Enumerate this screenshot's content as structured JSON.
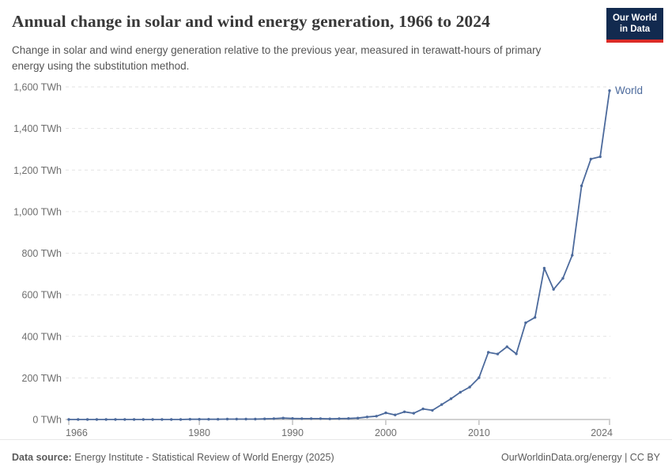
{
  "header": {
    "title": "Annual change in solar and wind energy generation, 1966 to 2024",
    "subtitle": "Change in solar and wind energy generation relative to the previous year, measured in terawatt-hours of primary energy using the substitution method.",
    "logo": {
      "line1": "Our World",
      "line2": "in Data"
    }
  },
  "footer": {
    "source_label": "Data source:",
    "source_text": "Energy Institute - Statistical Review of World Energy (2025)",
    "right_text": "OurWorldinData.org/energy | CC BY"
  },
  "colors": {
    "line": "#4C6A9C",
    "logo_navy": "#122A4F",
    "logo_red": "#DB2B27",
    "axis": "#a3a3a3",
    "gridline": "#e2e2e2",
    "tick_text": "#6e6e6e"
  },
  "chart_data": {
    "type": "line",
    "title": "Annual change in solar and wind energy generation, 1966 to 2024",
    "xlabel": "",
    "ylabel": "",
    "unit": "TWh",
    "xlim": [
      1966,
      2024
    ],
    "ylim": [
      0,
      1600
    ],
    "xticks": [
      1966,
      1980,
      1990,
      2000,
      2010,
      2024
    ],
    "yticks": [
      0,
      200,
      400,
      600,
      800,
      1000,
      1200,
      1400,
      1600
    ],
    "ytick_suffix": " TWh",
    "grid": "horizontal-dashed",
    "legend_position": "end-of-line-label",
    "line_color": "#4C6A9C",
    "series": [
      {
        "name": "World",
        "x": [
          1966,
          1967,
          1968,
          1969,
          1970,
          1971,
          1972,
          1973,
          1974,
          1975,
          1976,
          1977,
          1978,
          1979,
          1980,
          1981,
          1982,
          1983,
          1984,
          1985,
          1986,
          1987,
          1988,
          1989,
          1990,
          1991,
          1992,
          1993,
          1994,
          1995,
          1996,
          1997,
          1998,
          1999,
          2000,
          2001,
          2002,
          2003,
          2004,
          2005,
          2006,
          2007,
          2008,
          2009,
          2010,
          2011,
          2012,
          2013,
          2014,
          2015,
          2016,
          2017,
          2018,
          2019,
          2020,
          2021,
          2022,
          2023,
          2024
        ],
        "values": [
          0,
          0,
          0,
          0,
          0,
          0,
          0,
          0,
          0,
          0,
          0,
          0,
          0,
          1,
          1,
          1,
          1,
          2,
          2,
          2,
          2,
          3,
          4,
          7,
          5,
          4,
          4,
          4,
          3,
          4,
          5,
          7,
          12,
          16,
          32,
          22,
          37,
          30,
          51,
          44,
          72,
          100,
          131,
          156,
          201,
          323,
          315,
          350,
          316,
          465,
          491,
          728,
          626,
          679,
          790,
          1124,
          1253,
          1264,
          1582
        ]
      }
    ]
  }
}
